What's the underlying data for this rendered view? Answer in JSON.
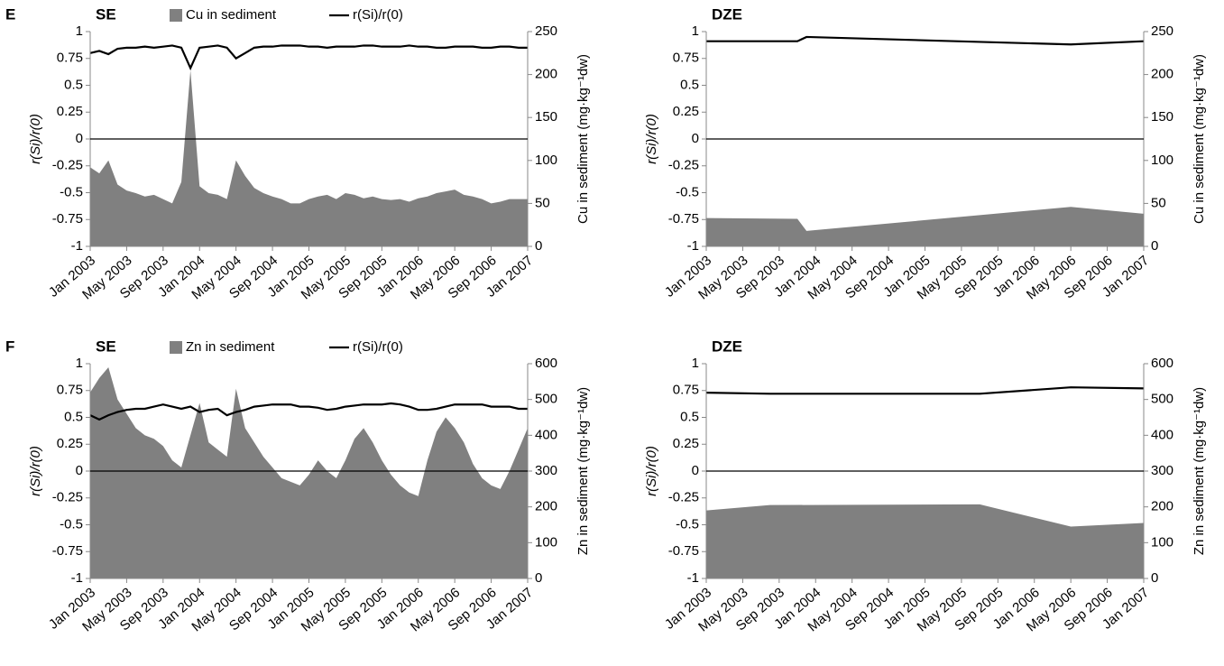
{
  "chart_data": [
    {
      "type": "area_line",
      "panel": "E",
      "title": "SE",
      "legend": true,
      "ylabel": "r(Si)/r(0)",
      "y2label": "Cu in sediment (mg·kg⁻¹dw)",
      "x": [
        "2003-01",
        "2003-02",
        "2003-03",
        "2003-04",
        "2003-05",
        "2003-06",
        "2003-07",
        "2003-08",
        "2003-09",
        "2003-10",
        "2003-11",
        "2003-12",
        "2004-01",
        "2004-02",
        "2004-03",
        "2004-04",
        "2004-05",
        "2004-06",
        "2004-07",
        "2004-08",
        "2004-09",
        "2004-10",
        "2004-11",
        "2004-12",
        "2005-01",
        "2005-02",
        "2005-03",
        "2005-04",
        "2005-05",
        "2005-06",
        "2005-07",
        "2005-08",
        "2005-09",
        "2005-10",
        "2005-11",
        "2005-12",
        "2006-01",
        "2006-02",
        "2006-03",
        "2006-04",
        "2006-05",
        "2006-06",
        "2006-07",
        "2006-08",
        "2006-09",
        "2006-10",
        "2006-11",
        "2006-12",
        "2007-01"
      ],
      "series": [
        {
          "name": "Cu in sediment",
          "color": "#808080",
          "axis": "y2",
          "values": [
            92,
            85,
            100,
            72,
            65,
            62,
            58,
            60,
            55,
            50,
            75,
            205,
            70,
            62,
            60,
            55,
            100,
            82,
            68,
            62,
            58,
            55,
            50,
            50,
            55,
            58,
            60,
            55,
            62,
            60,
            56,
            58,
            55,
            54,
            55,
            52,
            56,
            58,
            62,
            64,
            66,
            60,
            58,
            55,
            50,
            52,
            55,
            55,
            55
          ]
        },
        {
          "name": "r(Si)/r(0)",
          "color": "#000000",
          "values": [
            0.8,
            0.82,
            0.79,
            0.84,
            0.85,
            0.85,
            0.86,
            0.85,
            0.86,
            0.87,
            0.85,
            0.66,
            0.85,
            0.86,
            0.87,
            0.85,
            0.75,
            0.8,
            0.85,
            0.86,
            0.86,
            0.87,
            0.87,
            0.87,
            0.86,
            0.86,
            0.85,
            0.86,
            0.86,
            0.86,
            0.87,
            0.87,
            0.86,
            0.86,
            0.86,
            0.87,
            0.86,
            0.86,
            0.85,
            0.85,
            0.86,
            0.86,
            0.86,
            0.85,
            0.85,
            0.86,
            0.86,
            0.85,
            0.85
          ]
        }
      ],
      "xlim": [
        "2003-01",
        "2007-01"
      ],
      "xticks": [
        {
          "value": "2003-01",
          "label": "Jan 2003"
        },
        {
          "value": "2003-05",
          "label": "May 2003"
        },
        {
          "value": "2003-09",
          "label": "Sep 2003"
        },
        {
          "value": "2004-01",
          "label": "Jan 2004"
        },
        {
          "value": "2004-05",
          "label": "May 2004"
        },
        {
          "value": "2004-09",
          "label": "Sep 2004"
        },
        {
          "value": "2005-01",
          "label": "Jan 2005"
        },
        {
          "value": "2005-05",
          "label": "May 2005"
        },
        {
          "value": "2005-09",
          "label": "Sep 2005"
        },
        {
          "value": "2006-01",
          "label": "Jan 2006"
        },
        {
          "value": "2006-05",
          "label": "May 2006"
        },
        {
          "value": "2006-09",
          "label": "Sep 2006"
        },
        {
          "value": "2007-01",
          "label": "Jan 2007"
        }
      ],
      "ylim": [
        -1,
        1
      ],
      "yticks": [
        -1,
        -0.75,
        -0.5,
        -0.25,
        0,
        0.25,
        0.5,
        0.75,
        1
      ],
      "y2lim": [
        0,
        250
      ],
      "y2ticks": [
        0,
        50,
        100,
        150,
        200,
        250
      ]
    },
    {
      "type": "area_line",
      "title": "DZE",
      "legend": false,
      "ylabel": "r(Si)/r(0)",
      "y2label": "Cu in sediment (mg·kg⁻¹dw)",
      "x": [
        "2003-01",
        "2003-11",
        "2003-12",
        "2006-05",
        "2007-01"
      ],
      "series": [
        {
          "name": "Cu in sediment",
          "color": "#808080",
          "axis": "y2",
          "values": [
            33,
            32,
            18,
            46,
            38
          ]
        },
        {
          "name": "r(Si)/r(0)",
          "color": "#000000",
          "values": [
            0.91,
            0.91,
            0.95,
            0.88,
            0.91
          ]
        }
      ],
      "xlim": [
        "2003-01",
        "2007-01"
      ],
      "xticks": [
        {
          "value": "2003-01",
          "label": "Jan 2003"
        },
        {
          "value": "2003-05",
          "label": "May 2003"
        },
        {
          "value": "2003-09",
          "label": "Sep 2003"
        },
        {
          "value": "2004-01",
          "label": "Jan 2004"
        },
        {
          "value": "2004-05",
          "label": "May 2004"
        },
        {
          "value": "2004-09",
          "label": "Sep 2004"
        },
        {
          "value": "2005-01",
          "label": "Jan 2005"
        },
        {
          "value": "2005-05",
          "label": "May 2005"
        },
        {
          "value": "2005-09",
          "label": "Sep 2005"
        },
        {
          "value": "2006-01",
          "label": "Jan 2006"
        },
        {
          "value": "2006-05",
          "label": "May 2006"
        },
        {
          "value": "2006-09",
          "label": "Sep 2006"
        },
        {
          "value": "2007-01",
          "label": "Jan 2007"
        }
      ],
      "ylim": [
        -1,
        1
      ],
      "yticks": [
        -1,
        -0.75,
        -0.5,
        -0.25,
        0,
        0.25,
        0.5,
        0.75,
        1
      ],
      "y2lim": [
        0,
        250
      ],
      "y2ticks": [
        0,
        50,
        100,
        150,
        200,
        250
      ]
    },
    {
      "type": "area_line",
      "panel": "F",
      "title": "SE",
      "legend": true,
      "ylabel": "r(Si)/r(0)",
      "y2label": "Zn in sediment (mg·kg⁻¹dw)",
      "x": [
        "2003-01",
        "2003-02",
        "2003-03",
        "2003-04",
        "2003-05",
        "2003-06",
        "2003-07",
        "2003-08",
        "2003-09",
        "2003-10",
        "2003-11",
        "2003-12",
        "2004-01",
        "2004-02",
        "2004-03",
        "2004-04",
        "2004-05",
        "2004-06",
        "2004-07",
        "2004-08",
        "2004-09",
        "2004-10",
        "2004-11",
        "2004-12",
        "2005-01",
        "2005-02",
        "2005-03",
        "2005-04",
        "2005-05",
        "2005-06",
        "2005-07",
        "2005-08",
        "2005-09",
        "2005-10",
        "2005-11",
        "2005-12",
        "2006-01",
        "2006-02",
        "2006-03",
        "2006-04",
        "2006-05",
        "2006-06",
        "2006-07",
        "2006-08",
        "2006-09",
        "2006-10",
        "2006-11",
        "2006-12",
        "2007-01"
      ],
      "series": [
        {
          "name": "Zn in sediment",
          "color": "#808080",
          "axis": "y2",
          "values": [
            520,
            560,
            590,
            500,
            460,
            420,
            400,
            390,
            370,
            330,
            310,
            400,
            490,
            380,
            360,
            340,
            530,
            420,
            380,
            340,
            310,
            280,
            270,
            260,
            290,
            330,
            300,
            280,
            330,
            390,
            420,
            380,
            330,
            290,
            260,
            240,
            230,
            330,
            410,
            450,
            420,
            380,
            320,
            280,
            260,
            250,
            300,
            360,
            420
          ]
        },
        {
          "name": "r(Si)/r(0)",
          "color": "#000000",
          "values": [
            0.52,
            0.48,
            0.52,
            0.55,
            0.57,
            0.58,
            0.58,
            0.6,
            0.62,
            0.6,
            0.58,
            0.6,
            0.55,
            0.57,
            0.58,
            0.52,
            0.55,
            0.57,
            0.6,
            0.61,
            0.62,
            0.62,
            0.62,
            0.6,
            0.6,
            0.59,
            0.57,
            0.58,
            0.6,
            0.61,
            0.62,
            0.62,
            0.62,
            0.63,
            0.62,
            0.6,
            0.57,
            0.57,
            0.58,
            0.6,
            0.62,
            0.62,
            0.62,
            0.62,
            0.6,
            0.6,
            0.6,
            0.58,
            0.58
          ]
        }
      ],
      "xlim": [
        "2003-01",
        "2007-01"
      ],
      "xticks": [
        {
          "value": "2003-01",
          "label": "Jan 2003"
        },
        {
          "value": "2003-05",
          "label": "May 2003"
        },
        {
          "value": "2003-09",
          "label": "Sep 2003"
        },
        {
          "value": "2004-01",
          "label": "Jan 2004"
        },
        {
          "value": "2004-05",
          "label": "May 2004"
        },
        {
          "value": "2004-09",
          "label": "Sep 2004"
        },
        {
          "value": "2005-01",
          "label": "Jan 2005"
        },
        {
          "value": "2005-05",
          "label": "May 2005"
        },
        {
          "value": "2005-09",
          "label": "Sep 2005"
        },
        {
          "value": "2006-01",
          "label": "Jan 2006"
        },
        {
          "value": "2006-05",
          "label": "May 2006"
        },
        {
          "value": "2006-09",
          "label": "Sep 2006"
        },
        {
          "value": "2007-01",
          "label": "Jan 2007"
        }
      ],
      "ylim": [
        -1,
        1
      ],
      "yticks": [
        -1,
        -0.75,
        -0.5,
        -0.25,
        0,
        0.25,
        0.5,
        0.75,
        1
      ],
      "y2lim": [
        0,
        600
      ],
      "y2ticks": [
        0,
        100,
        200,
        300,
        400,
        500,
        600
      ]
    },
    {
      "type": "area_line",
      "title": "DZE",
      "legend": false,
      "ylabel": "r(Si)/r(0)",
      "y2label": "Zn in sediment (mg·kg⁻¹dw)",
      "x": [
        "2003-01",
        "2003-08",
        "2005-07",
        "2006-05",
        "2007-01"
      ],
      "series": [
        {
          "name": "Zn in sediment",
          "color": "#808080",
          "axis": "y2",
          "values": [
            190,
            205,
            207,
            145,
            155
          ]
        },
        {
          "name": "r(Si)/r(0)",
          "color": "#000000",
          "values": [
            0.73,
            0.72,
            0.72,
            0.78,
            0.77
          ]
        }
      ],
      "xlim": [
        "2003-01",
        "2007-01"
      ],
      "xticks": [
        {
          "value": "2003-01",
          "label": "Jan 2003"
        },
        {
          "value": "2003-05",
          "label": "May 2003"
        },
        {
          "value": "2003-09",
          "label": "Sep 2003"
        },
        {
          "value": "2004-01",
          "label": "Jan 2004"
        },
        {
          "value": "2004-05",
          "label": "May 2004"
        },
        {
          "value": "2004-09",
          "label": "Sep 2004"
        },
        {
          "value": "2005-01",
          "label": "Jan 2005"
        },
        {
          "value": "2005-05",
          "label": "May 2005"
        },
        {
          "value": "2005-09",
          "label": "Sep 2005"
        },
        {
          "value": "2006-01",
          "label": "Jan 2006"
        },
        {
          "value": "2006-05",
          "label": "May 2006"
        },
        {
          "value": "2006-09",
          "label": "Sep 2006"
        },
        {
          "value": "2007-01",
          "label": "Jan 2007"
        }
      ],
      "ylim": [
        -1,
        1
      ],
      "yticks": [
        -1,
        -0.75,
        -0.5,
        -0.25,
        0,
        0.25,
        0.5,
        0.75,
        1
      ],
      "y2lim": [
        0,
        600
      ],
      "y2ticks": [
        0,
        100,
        200,
        300,
        400,
        500,
        600
      ]
    }
  ]
}
